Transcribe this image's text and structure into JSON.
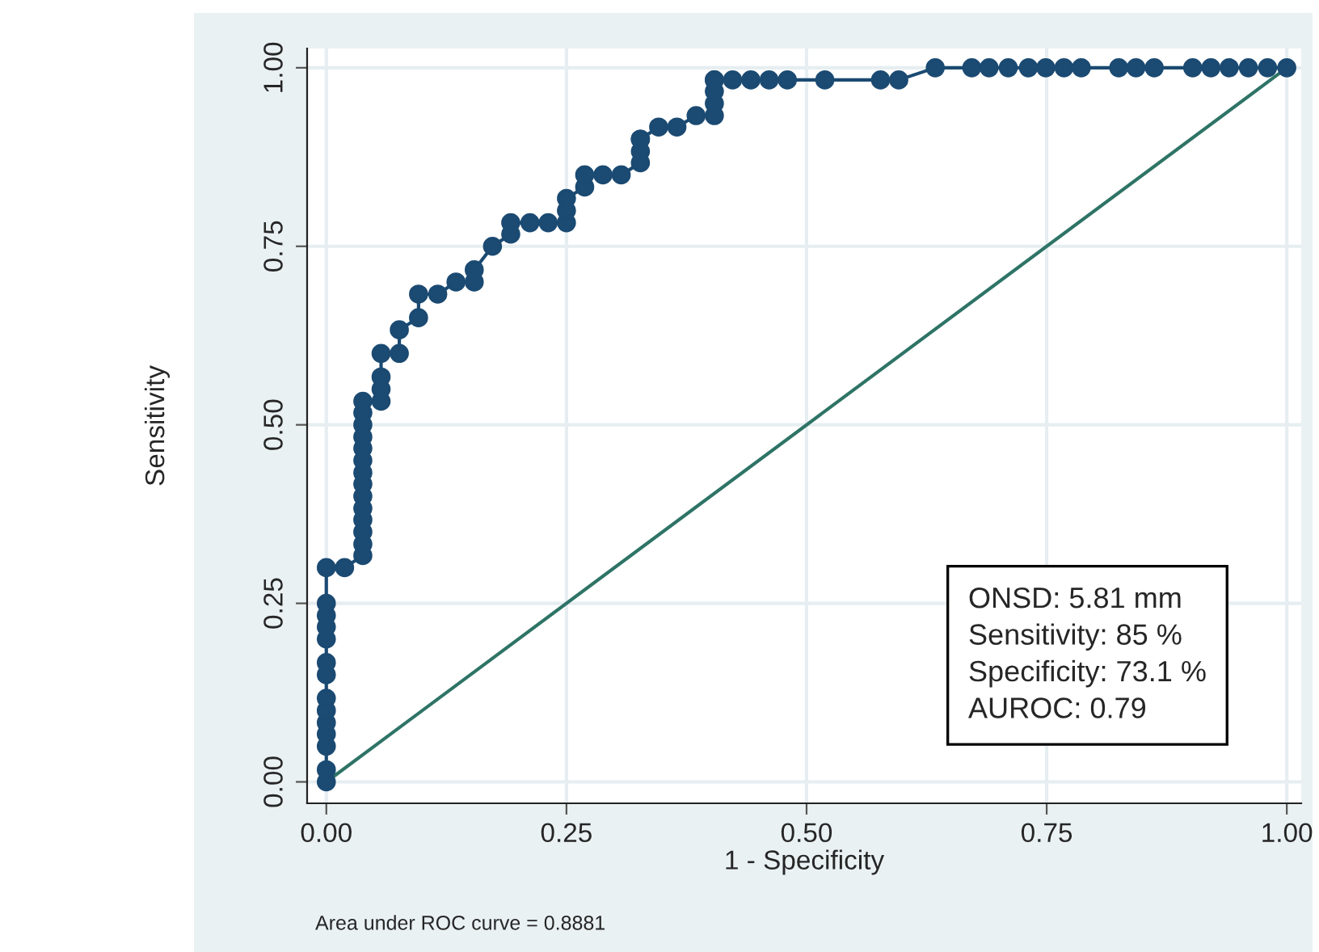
{
  "chart_data": {
    "type": "line",
    "xlabel": "1 - Specificity",
    "ylabel": "Sensitivity",
    "series": [
      {
        "color": "#1b4a72",
        "marker": "circle",
        "x": [
          0,
          0,
          0,
          0,
          0,
          0,
          0,
          0,
          0,
          0,
          0,
          0,
          0,
          0,
          0.019,
          0.038,
          0.038,
          0.038,
          0.038,
          0.038,
          0.038,
          0.038,
          0.038,
          0.038,
          0.038,
          0.038,
          0.038,
          0.038,
          0.038,
          0.057,
          0.057,
          0.057,
          0.057,
          0.076,
          0.076,
          0.096,
          0.096,
          0.116,
          0.135,
          0.154,
          0.154,
          0.173,
          0.192,
          0.192,
          0.212,
          0.231,
          0.25,
          0.25,
          0.25,
          0.269,
          0.269,
          0.288,
          0.307,
          0.327,
          0.327,
          0.327,
          0.327,
          0.346,
          0.365,
          0.385,
          0.404,
          0.404,
          0.404,
          0.404,
          0.404,
          0.423,
          0.442,
          0.461,
          0.48,
          0.519,
          0.577,
          0.596,
          0.634,
          0.672,
          0.69,
          0.71,
          0.731,
          0.749,
          0.768,
          0.786,
          0.825,
          0.843,
          0.862,
          0.902,
          0.921,
          0.94,
          0.96,
          0.98,
          1.0
        ],
        "values": [
          0,
          0.017,
          0.05,
          0.067,
          0.083,
          0.1,
          0.117,
          0.15,
          0.167,
          0.2,
          0.217,
          0.233,
          0.25,
          0.3,
          0.3,
          0.317,
          0.333,
          0.35,
          0.367,
          0.383,
          0.4,
          0.417,
          0.433,
          0.45,
          0.467,
          0.483,
          0.5,
          0.517,
          0.533,
          0.533,
          0.55,
          0.567,
          0.6,
          0.6,
          0.633,
          0.65,
          0.683,
          0.683,
          0.7,
          0.7,
          0.717,
          0.75,
          0.767,
          0.783,
          0.783,
          0.783,
          0.783,
          0.8,
          0.817,
          0.833,
          0.85,
          0.85,
          0.85,
          0.867,
          0.883,
          0.9,
          0.9,
          0.917,
          0.917,
          0.933,
          0.933,
          0.95,
          0.967,
          0.983,
          0.983,
          0.983,
          0.983,
          0.983,
          0.983,
          0.983,
          0.983,
          0.983,
          1.0,
          1.0,
          1.0,
          1.0,
          1.0,
          1.0,
          1.0,
          1.0,
          1.0,
          1.0,
          1.0,
          1.0,
          1.0,
          1.0,
          1.0,
          1.0,
          1.0
        ]
      },
      {
        "color": "#2e7466",
        "marker": "none",
        "x": [
          0,
          1
        ],
        "values": [
          0,
          1
        ]
      }
    ],
    "xlim": [
      -0.02,
      1.015
    ],
    "ylim": [
      -0.03,
      1.027
    ],
    "xticks": [
      {
        "value": 0,
        "label": "0.00"
      },
      {
        "value": 0.25,
        "label": "0.25"
      },
      {
        "value": 0.5,
        "label": "0.50"
      },
      {
        "value": 0.75,
        "label": "0.75"
      },
      {
        "value": 1,
        "label": "1.00"
      }
    ],
    "yticks": [
      {
        "value": 0,
        "label": "0.00"
      },
      {
        "value": 0.25,
        "label": "0.25"
      },
      {
        "value": 0.5,
        "label": "0.50"
      },
      {
        "value": 0.75,
        "label": "0.75"
      },
      {
        "value": 1,
        "label": "1.00"
      }
    ],
    "grid": true,
    "annotations": [
      "ONSD: 5.81 mm\nSensitivity: 85 %\nSpecificity: 73.1 %\nAUROC: 0.79",
      "Area under ROC curve = 0.8881"
    ]
  }
}
